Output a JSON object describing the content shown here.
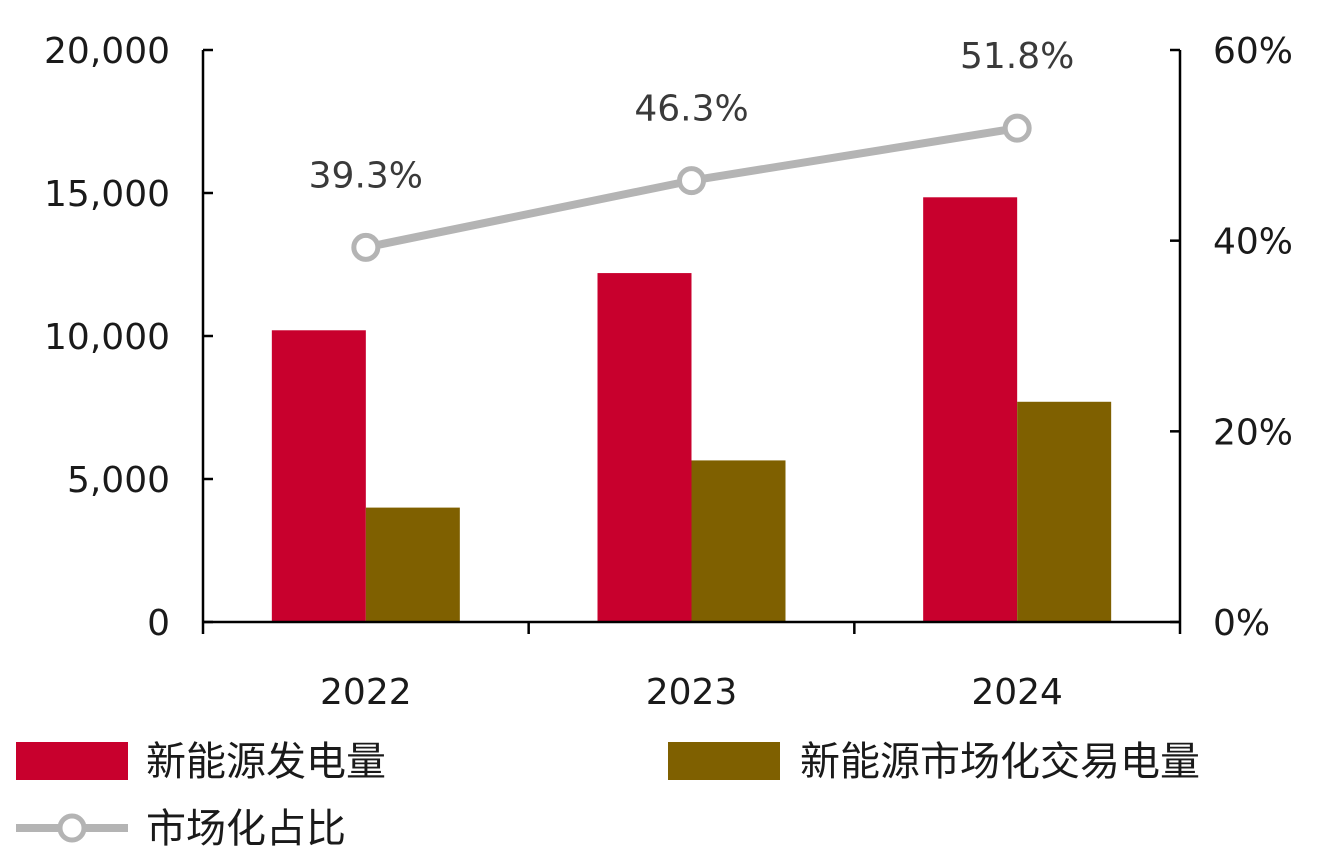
{
  "chart_data": {
    "type": "bar",
    "categories": [
      "2022",
      "2023",
      "2024"
    ],
    "series": [
      {
        "name": "新能源发电量",
        "type": "bar",
        "axis": "left",
        "color": "#c8002d",
        "values": [
          10200,
          12200,
          14850
        ]
      },
      {
        "name": "新能源市场化交易电量",
        "type": "bar",
        "axis": "left",
        "color": "#7f6000",
        "values": [
          4000,
          5650,
          7700
        ]
      },
      {
        "name": "市场化占比",
        "type": "line",
        "axis": "right",
        "color": "#b4b4b4",
        "values": [
          39.3,
          46.3,
          51.8
        ],
        "labels": [
          "39.3%",
          "46.3%",
          "51.8%"
        ]
      }
    ],
    "y_left": {
      "min": 0,
      "max": 20000,
      "ticks": [
        0,
        5000,
        10000,
        15000,
        20000
      ],
      "tick_labels": [
        "0",
        "5,000",
        "10,000",
        "15,000",
        "20,000"
      ]
    },
    "y_right": {
      "min": 0,
      "max": 60,
      "ticks": [
        0,
        20,
        40,
        60
      ],
      "tick_labels": [
        "0%",
        "20%",
        "40%",
        "60%"
      ]
    },
    "grid": false,
    "legend_position": "bottom"
  }
}
